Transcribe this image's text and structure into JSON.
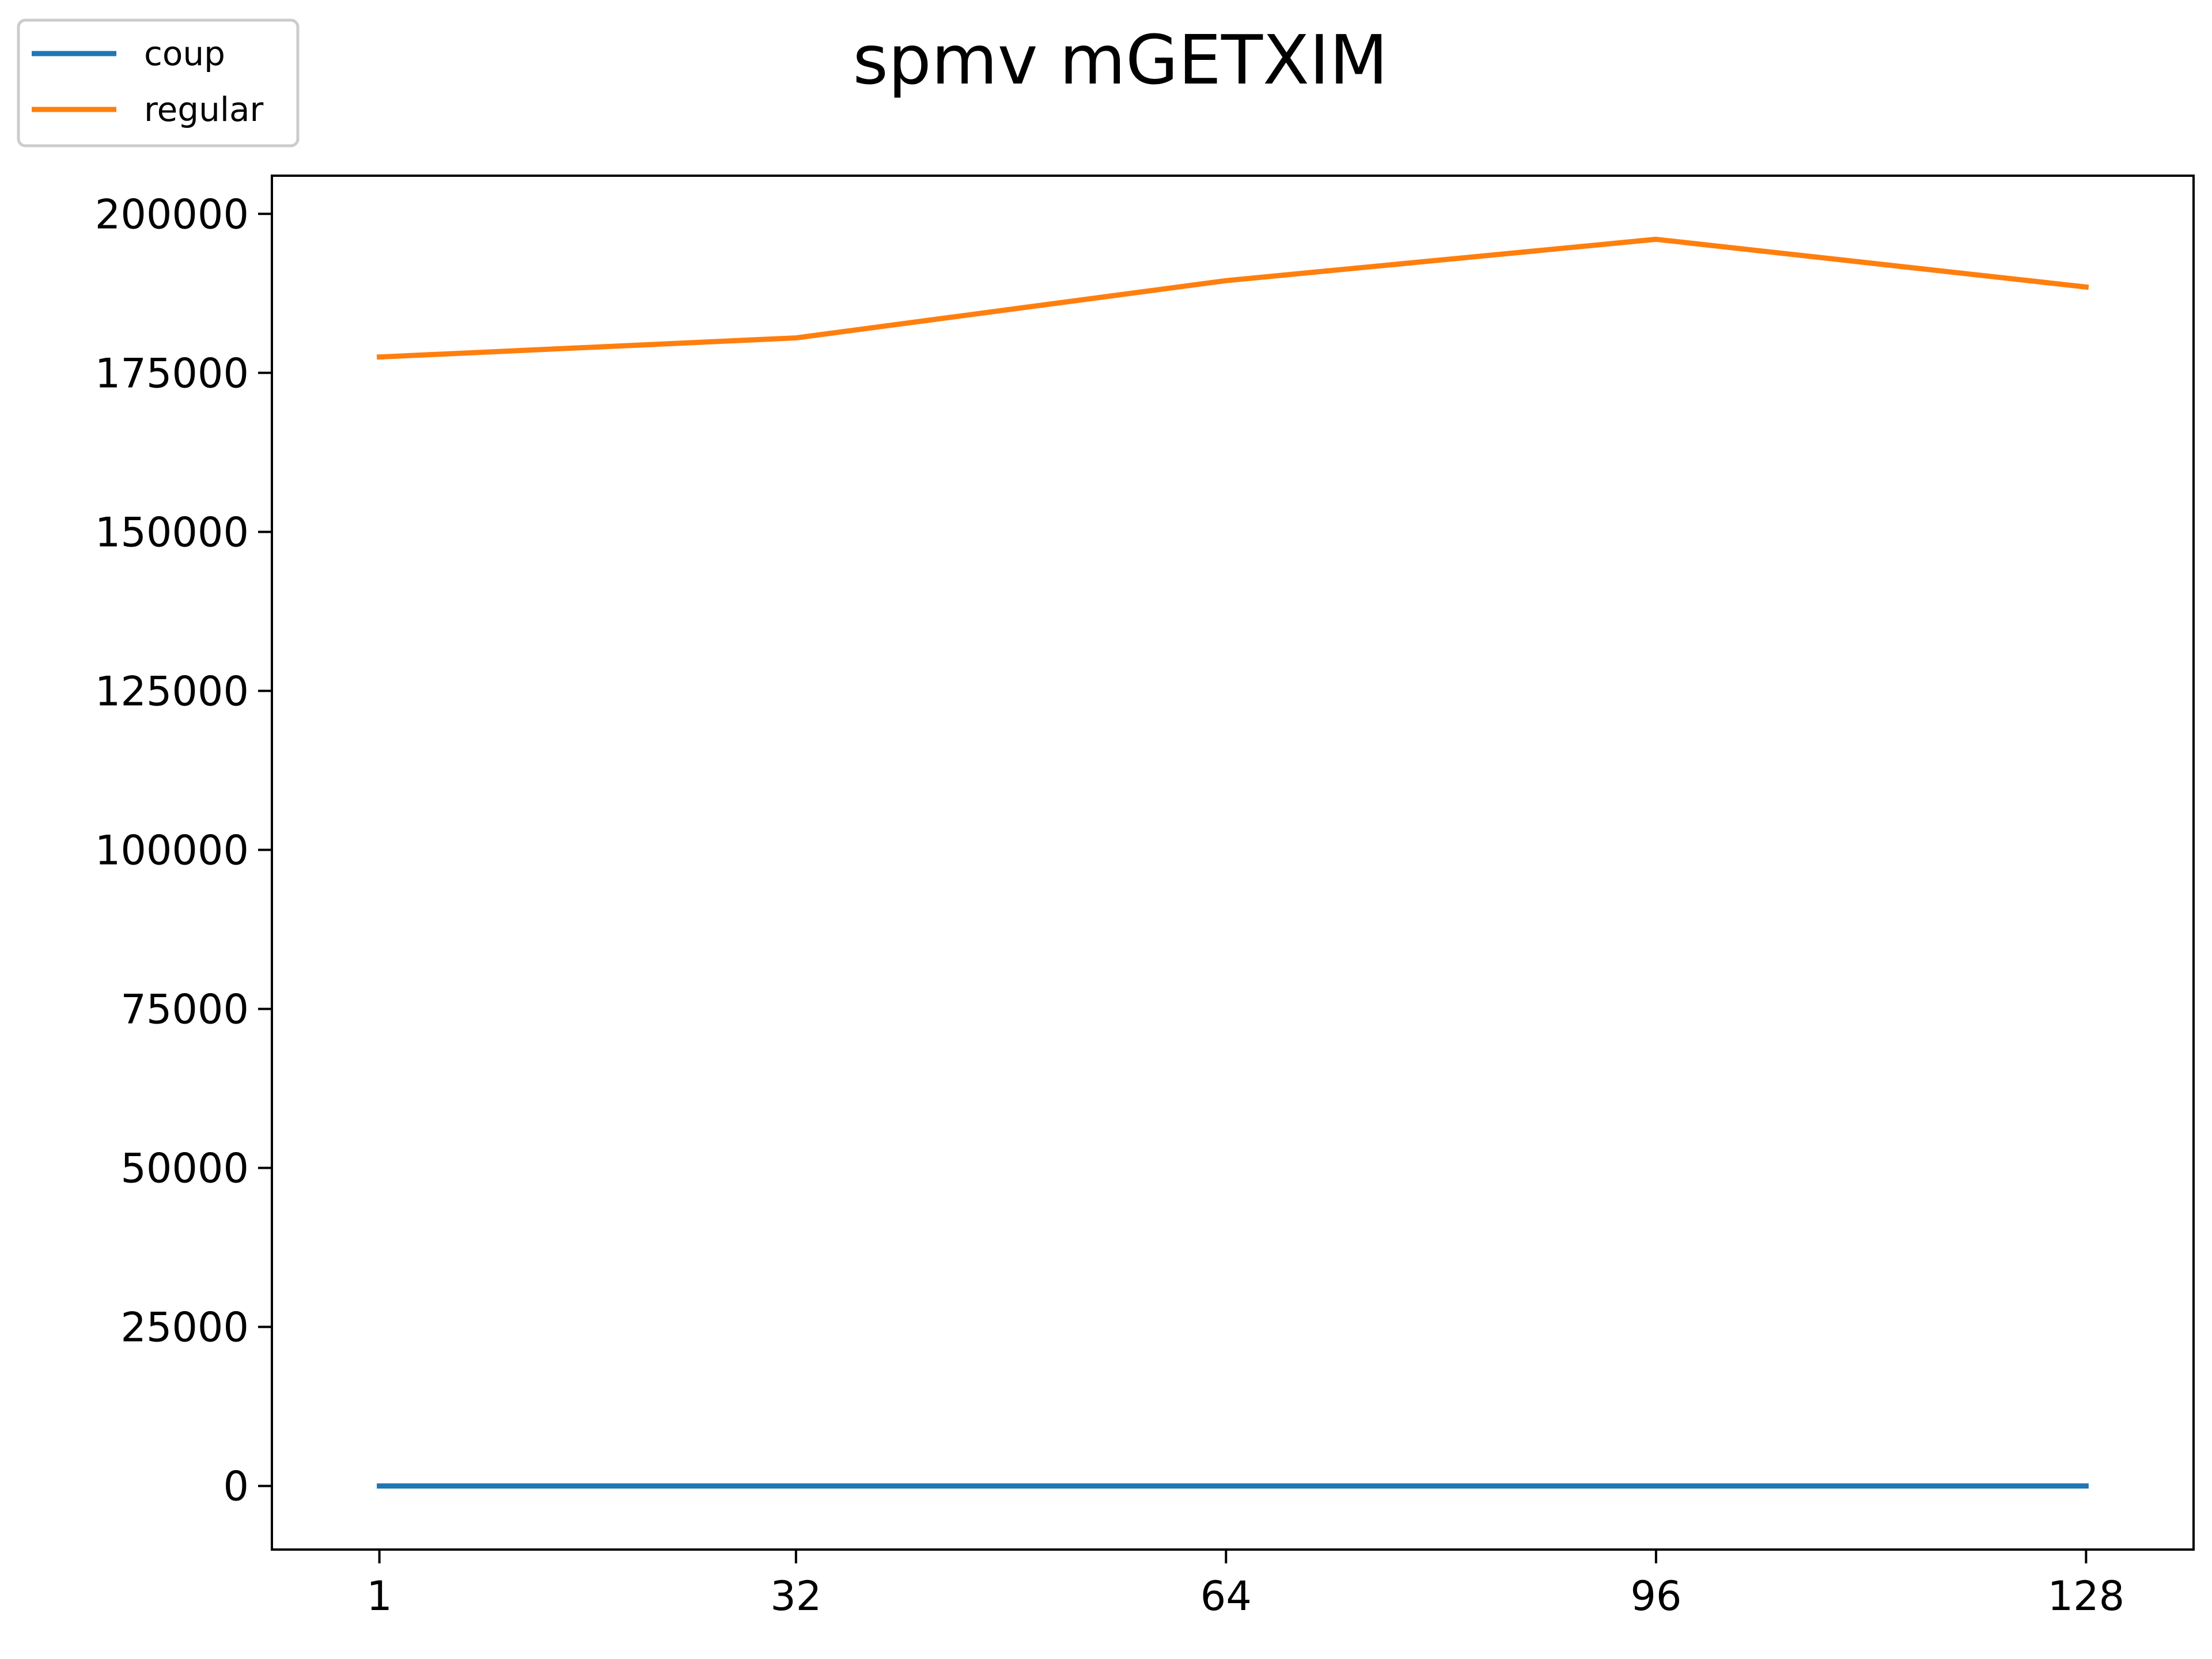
{
  "chart_data": {
    "type": "line",
    "title": "spmv mGETXIM",
    "xlabel": "",
    "ylabel": "",
    "x": [
      1,
      32,
      64,
      96,
      128
    ],
    "x_ticks": [
      "1",
      "32",
      "64",
      "96",
      "128"
    ],
    "y_ticks": [
      "0",
      "25000",
      "50000",
      "75000",
      "100000",
      "125000",
      "150000",
      "175000",
      "200000"
    ],
    "ylim": [
      -10000,
      206000
    ],
    "grid": false,
    "legend_placement": "top-left",
    "series": [
      {
        "name": "coup",
        "color": "#1f77b4",
        "values": [
          0,
          0,
          0,
          0,
          0
        ]
      },
      {
        "name": "regular",
        "color": "#ff7f0e",
        "values": [
          177500,
          180500,
          189500,
          196000,
          188500
        ]
      }
    ]
  }
}
